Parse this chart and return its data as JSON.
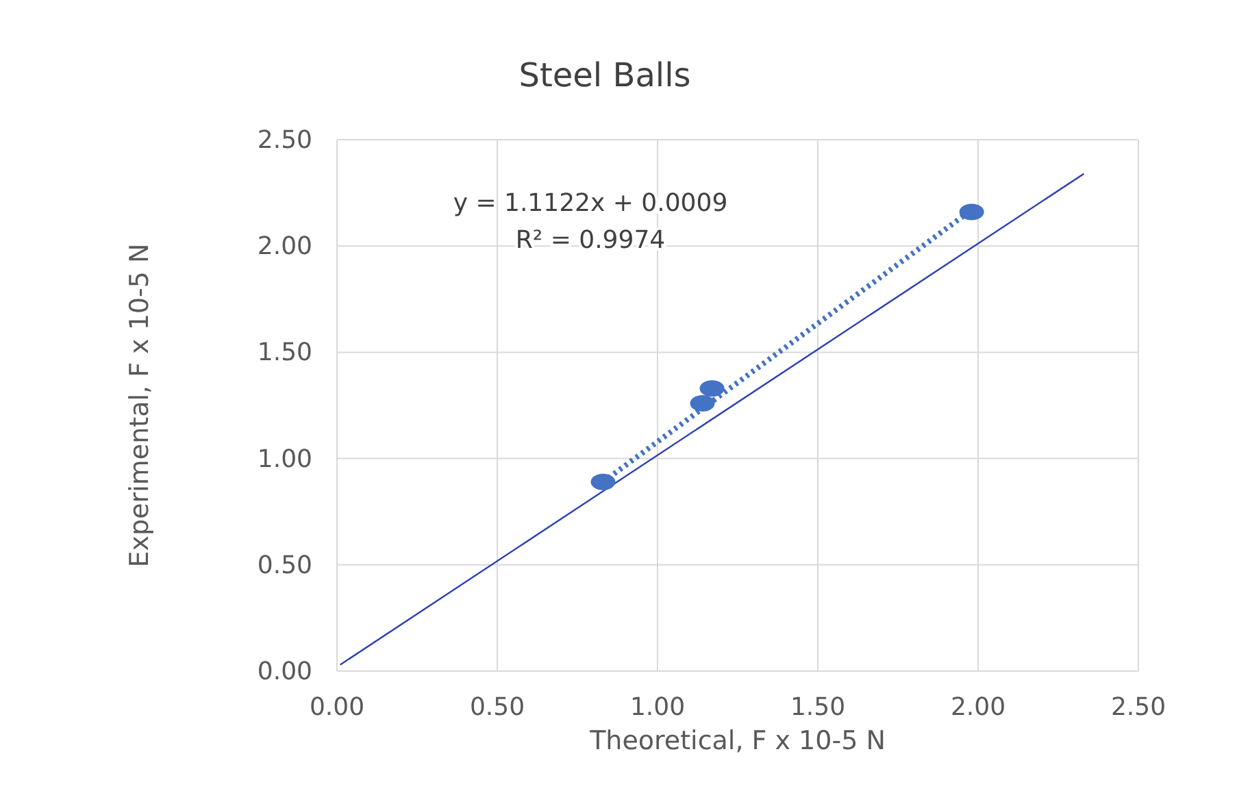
{
  "chart_data": {
    "type": "scatter",
    "title": "Steel Balls",
    "xlabel": "Theoretical, F x 10-5  N",
    "ylabel": "Experimental, F x 10-5 N",
    "xlim": [
      0,
      2.5
    ],
    "ylim": [
      0,
      2.5
    ],
    "xticks": [
      {
        "value": 0,
        "label": "0.00"
      },
      {
        "value": 0.5,
        "label": "0.50"
      },
      {
        "value": 1,
        "label": "1.00"
      },
      {
        "value": 1.5,
        "label": "1.50"
      },
      {
        "value": 2,
        "label": "2.00"
      },
      {
        "value": 2.5,
        "label": "2.50"
      }
    ],
    "yticks": [
      {
        "value": 0,
        "label": "0.00"
      },
      {
        "value": 0.5,
        "label": "0.50"
      },
      {
        "value": 1,
        "label": "1.00"
      },
      {
        "value": 1.5,
        "label": "1.50"
      },
      {
        "value": 2,
        "label": "2.00"
      },
      {
        "value": 2.5,
        "label": "2.50"
      }
    ],
    "grid": true,
    "series": [
      {
        "color": "#4472c4",
        "marker": "circle",
        "x": [
          0.83,
          1.14,
          1.17,
          1.98
        ],
        "values": [
          0.89,
          1.26,
          1.33,
          2.16
        ]
      },
      {
        "type": "line",
        "color": "#4472c4",
        "line_style": "dotted",
        "marker": "none",
        "x": [
          0.83,
          1.98
        ],
        "values": [
          0.89,
          2.17
        ]
      },
      {
        "type": "line",
        "color": "#2a3fb5",
        "line_style": "solid",
        "marker": "none",
        "x": [
          0.01,
          2.33
        ],
        "values": [
          0.03,
          2.34
        ]
      }
    ],
    "annotations": [
      "y = 1.1122x + 0.0009",
      "R² = 0.9974"
    ]
  }
}
